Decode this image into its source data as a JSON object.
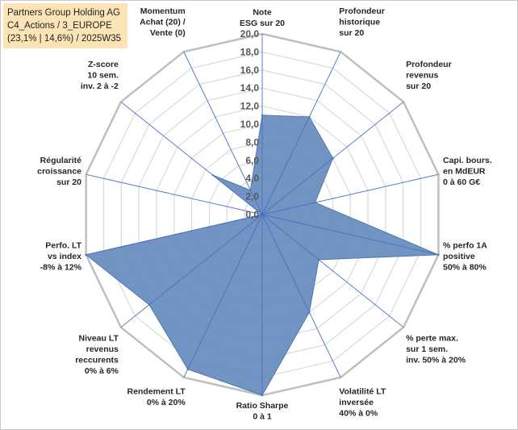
{
  "header": {
    "line1": "Partners Group Holding AG",
    "line2": "C4_Actions / 3_EUROPE",
    "line3": "(23,1% | 14,6%) / 2025W35"
  },
  "chart_data": {
    "type": "radar",
    "title": "Partners Group Holding AG",
    "rmin": 0,
    "rmax": 20,
    "tick_step": 2,
    "tick_labels": [
      "0,0",
      "2,0",
      "4,0",
      "6,0",
      "8,0",
      "10,0",
      "12,0",
      "14,0",
      "16,0",
      "18,0",
      "20,0"
    ],
    "grid": true,
    "categories": [
      [
        "Note",
        "ESG sur 20"
      ],
      [
        "Profondeur",
        "historique",
        "sur 20"
      ],
      [
        "Profondeur",
        "revenus",
        "sur 20"
      ],
      [
        "Capi. bours.",
        "en MdEUR",
        "0 à 60 G€"
      ],
      [
        "% perfo 1A",
        "positive",
        "50% à 80%"
      ],
      [
        "% perte max.",
        "sur 1 sem.",
        "inv. 50% à 20%"
      ],
      [
        "Volatilité LT",
        "inversée",
        "40% à 0%"
      ],
      [
        "Ratio Sharpe",
        "0 à 1"
      ],
      [
        "Rendement LT",
        "0% à 20%"
      ],
      [
        "Niveau LT",
        "revenus",
        "reccurents",
        "0% à 6%"
      ],
      [
        "Perfo. LT",
        "vs index",
        "-8% à 12%"
      ],
      [
        "Régularité",
        "croissance",
        "sur 20"
      ],
      [
        "Z-score",
        "10 sem.",
        "inv. 2 à -2"
      ],
      [
        "Momentum",
        "Achat (20) /",
        "Vente (0)"
      ]
    ],
    "values": [
      11,
      12,
      10,
      6,
      20,
      8,
      12,
      20,
      19,
      16,
      20,
      0,
      7,
      3
    ],
    "colors": {
      "fill": "#6a8ebf",
      "stroke": "#4f78b0",
      "grid": "#d9d9d9",
      "outer": "#bfbfbf",
      "spoke": "#4472c4"
    }
  }
}
